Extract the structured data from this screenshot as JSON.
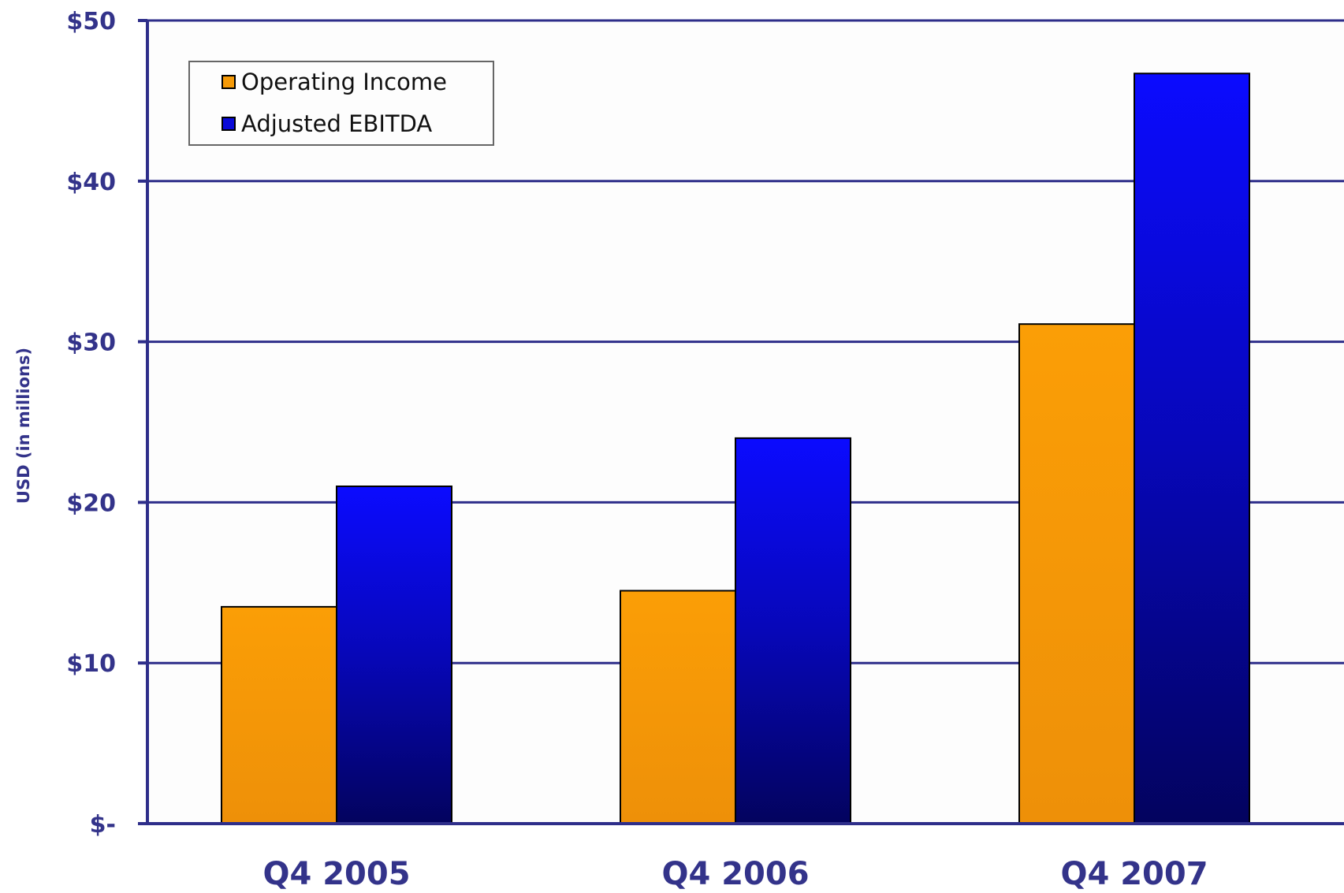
{
  "chart_data": {
    "type": "bar",
    "title": "",
    "ylabel": "USD (in millions)",
    "xlabel": "",
    "categories": [
      "Q4 2005",
      "Q4 2006",
      "Q4 2007"
    ],
    "series": [
      {
        "name": "Operating Income",
        "values": [
          13.5,
          14.5,
          31.1
        ]
      },
      {
        "name": "Adjusted EBITDA",
        "values": [
          21.0,
          24.0,
          46.7
        ]
      }
    ],
    "ylim": [
      0,
      50
    ],
    "yticks": [
      0,
      10,
      20,
      30,
      40,
      50
    ],
    "ytick_labels": [
      "$-",
      "$10",
      "$20",
      "$30",
      "$40",
      "$50"
    ],
    "grid": true,
    "legend_position": "top-left",
    "colors": {
      "Operating Income": "#f59a08",
      "Adjusted EBITDA": "#0a0aff",
      "axis": "#2e2e8a",
      "label": "#33338a",
      "plot_background": "#fdfdfd"
    }
  }
}
